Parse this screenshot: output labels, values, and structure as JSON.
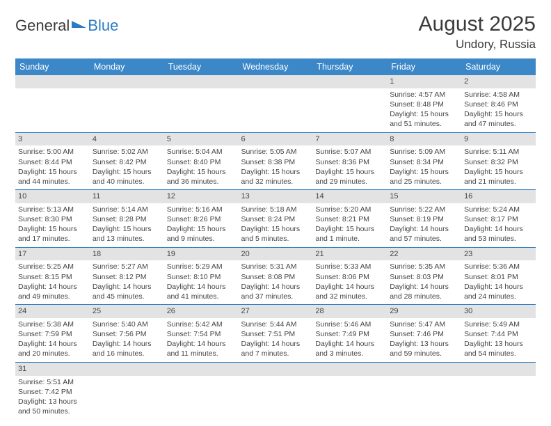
{
  "logo": {
    "text1": "General",
    "text2": "Blue"
  },
  "title": "August 2025",
  "location": "Undory, Russia",
  "colors": {
    "header_bg": "#3b87c8",
    "header_text": "#ffffff",
    "day_head_bg": "#e3e3e3",
    "row_border": "#2b7bc4",
    "text": "#444444",
    "logo_blue": "#2b7bc4"
  },
  "weekdays": [
    "Sunday",
    "Monday",
    "Tuesday",
    "Wednesday",
    "Thursday",
    "Friday",
    "Saturday"
  ],
  "weeks": [
    [
      null,
      null,
      null,
      null,
      null,
      {
        "n": "1",
        "sr": "Sunrise: 4:57 AM",
        "ss": "Sunset: 8:48 PM",
        "d1": "Daylight: 15 hours",
        "d2": "and 51 minutes."
      },
      {
        "n": "2",
        "sr": "Sunrise: 4:58 AM",
        "ss": "Sunset: 8:46 PM",
        "d1": "Daylight: 15 hours",
        "d2": "and 47 minutes."
      }
    ],
    [
      {
        "n": "3",
        "sr": "Sunrise: 5:00 AM",
        "ss": "Sunset: 8:44 PM",
        "d1": "Daylight: 15 hours",
        "d2": "and 44 minutes."
      },
      {
        "n": "4",
        "sr": "Sunrise: 5:02 AM",
        "ss": "Sunset: 8:42 PM",
        "d1": "Daylight: 15 hours",
        "d2": "and 40 minutes."
      },
      {
        "n": "5",
        "sr": "Sunrise: 5:04 AM",
        "ss": "Sunset: 8:40 PM",
        "d1": "Daylight: 15 hours",
        "d2": "and 36 minutes."
      },
      {
        "n": "6",
        "sr": "Sunrise: 5:05 AM",
        "ss": "Sunset: 8:38 PM",
        "d1": "Daylight: 15 hours",
        "d2": "and 32 minutes."
      },
      {
        "n": "7",
        "sr": "Sunrise: 5:07 AM",
        "ss": "Sunset: 8:36 PM",
        "d1": "Daylight: 15 hours",
        "d2": "and 29 minutes."
      },
      {
        "n": "8",
        "sr": "Sunrise: 5:09 AM",
        "ss": "Sunset: 8:34 PM",
        "d1": "Daylight: 15 hours",
        "d2": "and 25 minutes."
      },
      {
        "n": "9",
        "sr": "Sunrise: 5:11 AM",
        "ss": "Sunset: 8:32 PM",
        "d1": "Daylight: 15 hours",
        "d2": "and 21 minutes."
      }
    ],
    [
      {
        "n": "10",
        "sr": "Sunrise: 5:13 AM",
        "ss": "Sunset: 8:30 PM",
        "d1": "Daylight: 15 hours",
        "d2": "and 17 minutes."
      },
      {
        "n": "11",
        "sr": "Sunrise: 5:14 AM",
        "ss": "Sunset: 8:28 PM",
        "d1": "Daylight: 15 hours",
        "d2": "and 13 minutes."
      },
      {
        "n": "12",
        "sr": "Sunrise: 5:16 AM",
        "ss": "Sunset: 8:26 PM",
        "d1": "Daylight: 15 hours",
        "d2": "and 9 minutes."
      },
      {
        "n": "13",
        "sr": "Sunrise: 5:18 AM",
        "ss": "Sunset: 8:24 PM",
        "d1": "Daylight: 15 hours",
        "d2": "and 5 minutes."
      },
      {
        "n": "14",
        "sr": "Sunrise: 5:20 AM",
        "ss": "Sunset: 8:21 PM",
        "d1": "Daylight: 15 hours",
        "d2": "and 1 minute."
      },
      {
        "n": "15",
        "sr": "Sunrise: 5:22 AM",
        "ss": "Sunset: 8:19 PM",
        "d1": "Daylight: 14 hours",
        "d2": "and 57 minutes."
      },
      {
        "n": "16",
        "sr": "Sunrise: 5:24 AM",
        "ss": "Sunset: 8:17 PM",
        "d1": "Daylight: 14 hours",
        "d2": "and 53 minutes."
      }
    ],
    [
      {
        "n": "17",
        "sr": "Sunrise: 5:25 AM",
        "ss": "Sunset: 8:15 PM",
        "d1": "Daylight: 14 hours",
        "d2": "and 49 minutes."
      },
      {
        "n": "18",
        "sr": "Sunrise: 5:27 AM",
        "ss": "Sunset: 8:12 PM",
        "d1": "Daylight: 14 hours",
        "d2": "and 45 minutes."
      },
      {
        "n": "19",
        "sr": "Sunrise: 5:29 AM",
        "ss": "Sunset: 8:10 PM",
        "d1": "Daylight: 14 hours",
        "d2": "and 41 minutes."
      },
      {
        "n": "20",
        "sr": "Sunrise: 5:31 AM",
        "ss": "Sunset: 8:08 PM",
        "d1": "Daylight: 14 hours",
        "d2": "and 37 minutes."
      },
      {
        "n": "21",
        "sr": "Sunrise: 5:33 AM",
        "ss": "Sunset: 8:06 PM",
        "d1": "Daylight: 14 hours",
        "d2": "and 32 minutes."
      },
      {
        "n": "22",
        "sr": "Sunrise: 5:35 AM",
        "ss": "Sunset: 8:03 PM",
        "d1": "Daylight: 14 hours",
        "d2": "and 28 minutes."
      },
      {
        "n": "23",
        "sr": "Sunrise: 5:36 AM",
        "ss": "Sunset: 8:01 PM",
        "d1": "Daylight: 14 hours",
        "d2": "and 24 minutes."
      }
    ],
    [
      {
        "n": "24",
        "sr": "Sunrise: 5:38 AM",
        "ss": "Sunset: 7:59 PM",
        "d1": "Daylight: 14 hours",
        "d2": "and 20 minutes."
      },
      {
        "n": "25",
        "sr": "Sunrise: 5:40 AM",
        "ss": "Sunset: 7:56 PM",
        "d1": "Daylight: 14 hours",
        "d2": "and 16 minutes."
      },
      {
        "n": "26",
        "sr": "Sunrise: 5:42 AM",
        "ss": "Sunset: 7:54 PM",
        "d1": "Daylight: 14 hours",
        "d2": "and 11 minutes."
      },
      {
        "n": "27",
        "sr": "Sunrise: 5:44 AM",
        "ss": "Sunset: 7:51 PM",
        "d1": "Daylight: 14 hours",
        "d2": "and 7 minutes."
      },
      {
        "n": "28",
        "sr": "Sunrise: 5:46 AM",
        "ss": "Sunset: 7:49 PM",
        "d1": "Daylight: 14 hours",
        "d2": "and 3 minutes."
      },
      {
        "n": "29",
        "sr": "Sunrise: 5:47 AM",
        "ss": "Sunset: 7:46 PM",
        "d1": "Daylight: 13 hours",
        "d2": "and 59 minutes."
      },
      {
        "n": "30",
        "sr": "Sunrise: 5:49 AM",
        "ss": "Sunset: 7:44 PM",
        "d1": "Daylight: 13 hours",
        "d2": "and 54 minutes."
      }
    ],
    [
      {
        "n": "31",
        "sr": "Sunrise: 5:51 AM",
        "ss": "Sunset: 7:42 PM",
        "d1": "Daylight: 13 hours",
        "d2": "and 50 minutes."
      },
      null,
      null,
      null,
      null,
      null,
      null
    ]
  ]
}
